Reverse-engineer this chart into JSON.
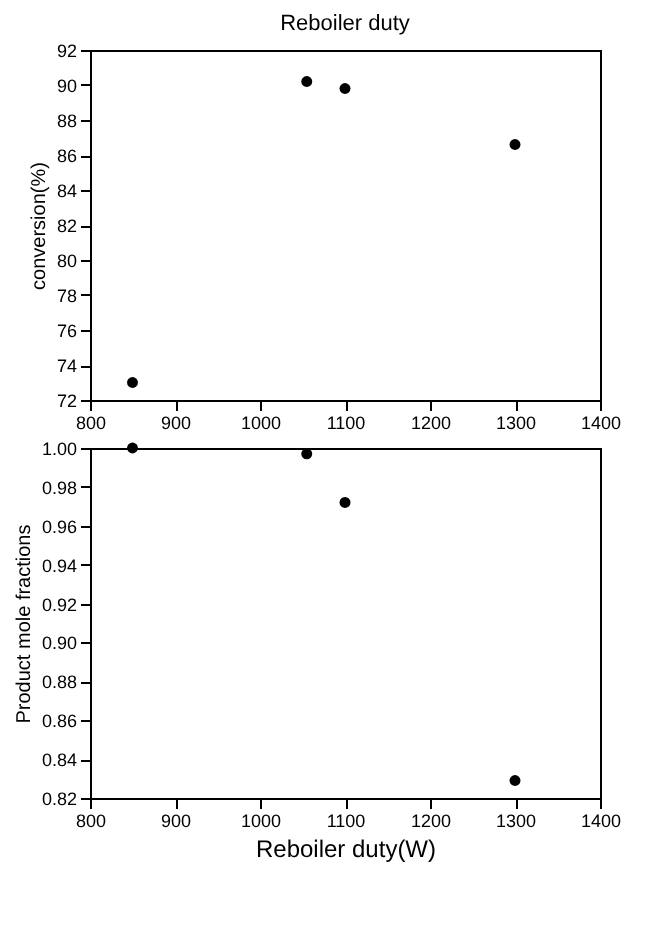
{
  "chart_data": [
    {
      "type": "scatter",
      "title": "Reboiler duty",
      "ylabel": "conversion(%)",
      "x": [
        850,
        1055,
        1100,
        1300
      ],
      "values": [
        73.0,
        90.2,
        89.8,
        86.6
      ],
      "color": "#000000",
      "marker": "circle",
      "xlim": [
        800,
        1400
      ],
      "xticks": [
        800,
        900,
        1000,
        1100,
        1200,
        1300,
        1400
      ],
      "ylim": [
        72,
        92
      ],
      "yticks": [
        72,
        74,
        76,
        78,
        80,
        82,
        84,
        86,
        88,
        90,
        92
      ],
      "grid": false
    },
    {
      "type": "scatter",
      "xlabel": "Reboiler duty(W)",
      "ylabel": "Product mole fractions",
      "x": [
        850,
        1055,
        1100,
        1300
      ],
      "values": [
        1.0,
        0.997,
        0.972,
        0.829
      ],
      "color": "#000000",
      "marker": "circle",
      "xlim": [
        800,
        1400
      ],
      "xticks": [
        800,
        900,
        1000,
        1100,
        1200,
        1300,
        1400
      ],
      "ylim": [
        0.82,
        1.0
      ],
      "yticks": [
        {
          "value": 0.82,
          "label": "0.82"
        },
        {
          "value": 0.84,
          "label": "0.84"
        },
        {
          "value": 0.86,
          "label": "0.86"
        },
        {
          "value": 0.88,
          "label": "0.88"
        },
        {
          "value": 0.9,
          "label": "0.90"
        },
        {
          "value": 0.92,
          "label": "0.92"
        },
        {
          "value": 0.94,
          "label": "0.94"
        },
        {
          "value": 0.96,
          "label": "0.96"
        },
        {
          "value": 0.98,
          "label": "0.98"
        },
        {
          "value": 1.0,
          "label": "1.00"
        }
      ],
      "grid": false
    }
  ]
}
